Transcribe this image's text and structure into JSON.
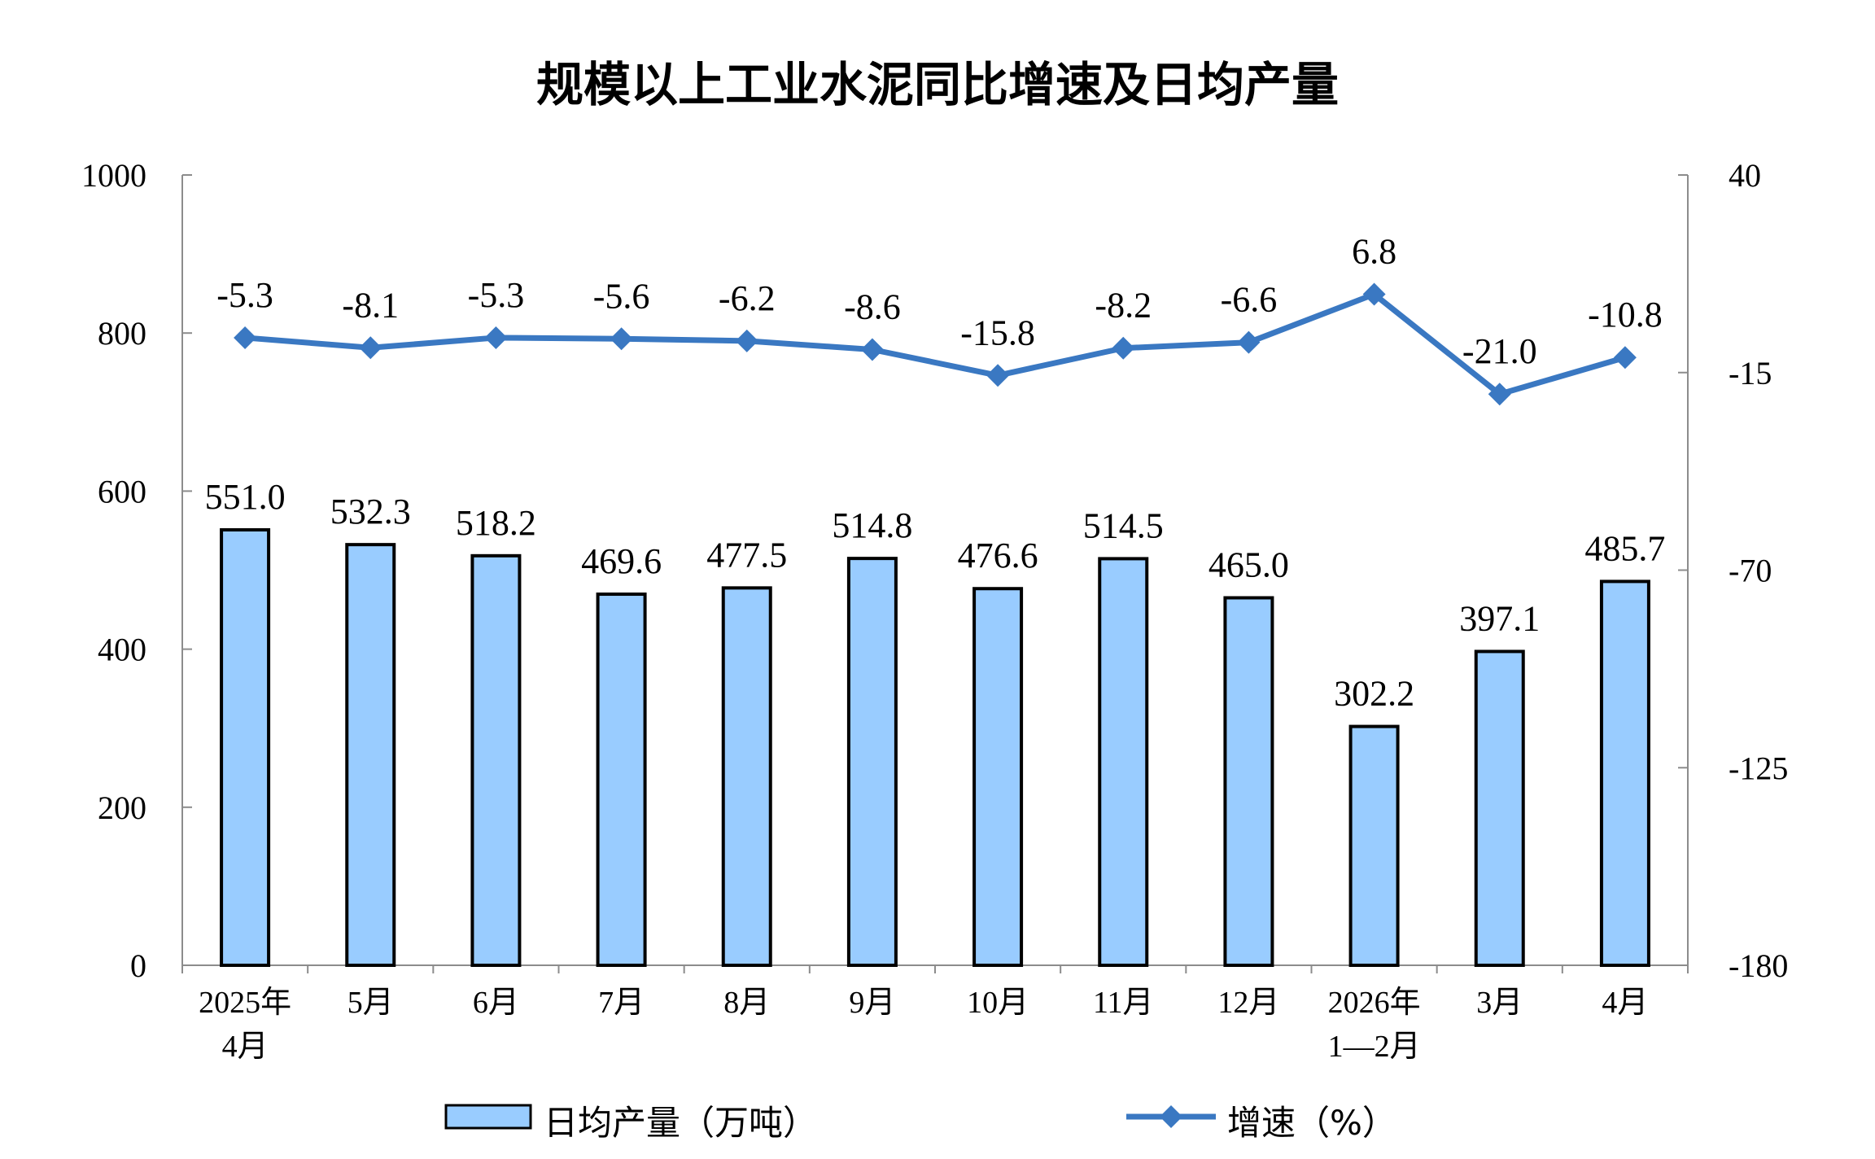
{
  "chart_data": {
    "type": "bar+line",
    "title": "规模以上工业水泥同比增速及日均产量",
    "categories": [
      [
        "2025年",
        "4月"
      ],
      [
        "5月"
      ],
      [
        "6月"
      ],
      [
        "7月"
      ],
      [
        "8月"
      ],
      [
        "9月"
      ],
      [
        "10月"
      ],
      [
        "11月"
      ],
      [
        "12月"
      ],
      [
        "2026年",
        "1—2月"
      ],
      [
        "3月"
      ],
      [
        "4月"
      ]
    ],
    "series": [
      {
        "name": "日均产量（万吨）",
        "type": "bar",
        "axis": "left",
        "color": "#99ccff",
        "values": [
          551.0,
          532.3,
          518.2,
          469.6,
          477.5,
          514.8,
          476.6,
          514.5,
          465.0,
          302.2,
          397.1,
          485.7
        ],
        "labels": [
          "551.0",
          "532.3",
          "518.2",
          "469.6",
          "477.5",
          "514.8",
          "476.6",
          "514.5",
          "465.0",
          "302.2",
          "397.1",
          "485.7"
        ]
      },
      {
        "name": "增速（%）",
        "type": "line",
        "axis": "right",
        "color": "#3a78c2",
        "values": [
          -5.3,
          -8.1,
          -5.3,
          -5.6,
          -6.2,
          -8.6,
          -15.8,
          -8.2,
          -6.6,
          6.8,
          -21.0,
          -10.8
        ],
        "labels": [
          "-5.3",
          "-8.1",
          "-5.3",
          "-5.6",
          "-6.2",
          "-8.6",
          "-15.8",
          "-8.2",
          "-6.6",
          "6.8",
          "-21.0",
          "-10.8"
        ]
      }
    ],
    "y_left": {
      "min": 0,
      "max": 1000,
      "ticks": [
        "0",
        "200",
        "400",
        "600",
        "800",
        "1000"
      ]
    },
    "y_right": {
      "min": -180,
      "max": 40,
      "ticks": [
        "-180",
        "-125",
        "-70",
        "-15",
        "40"
      ]
    },
    "legend_position": "bottom",
    "grid": false
  }
}
